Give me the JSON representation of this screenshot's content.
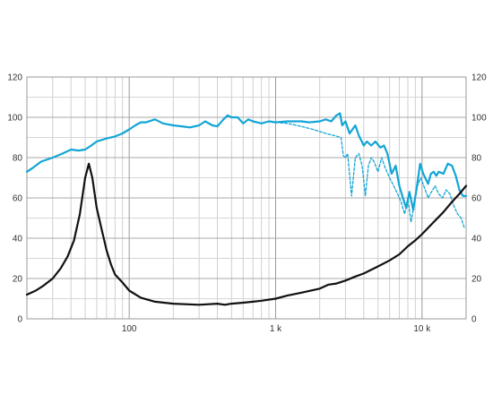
{
  "chart_data": {
    "type": "line",
    "xscale": "log",
    "xlim": [
      20,
      20000
    ],
    "ylim": [
      0,
      120
    ],
    "grid": true,
    "x_tick_labels": [
      {
        "x": 100,
        "label": "100"
      },
      {
        "x": 1000,
        "label": "1 k"
      },
      {
        "x": 10000,
        "label": "10 k"
      }
    ],
    "y_tick_labels": [
      "0",
      "20",
      "40",
      "60",
      "80",
      "100",
      "120"
    ],
    "y_tick_values": [
      0,
      20,
      40,
      60,
      80,
      100,
      120
    ],
    "series": [
      {
        "color": "#12a5d6",
        "style": "solid",
        "points": [
          [
            20,
            73
          ],
          [
            22,
            75
          ],
          [
            25,
            78
          ],
          [
            30,
            80
          ],
          [
            35,
            82
          ],
          [
            40,
            84
          ],
          [
            45,
            83.5
          ],
          [
            50,
            84
          ],
          [
            55,
            86
          ],
          [
            60,
            88
          ],
          [
            70,
            89.5
          ],
          [
            80,
            90.5
          ],
          [
            90,
            92
          ],
          [
            100,
            94
          ],
          [
            110,
            96
          ],
          [
            120,
            97.5
          ],
          [
            130,
            97.5
          ],
          [
            150,
            99
          ],
          [
            170,
            97
          ],
          [
            200,
            96
          ],
          [
            230,
            95.5
          ],
          [
            260,
            95
          ],
          [
            300,
            96
          ],
          [
            330,
            98
          ],
          [
            370,
            96
          ],
          [
            400,
            95.5
          ],
          [
            440,
            99
          ],
          [
            470,
            101
          ],
          [
            500,
            100
          ],
          [
            550,
            100
          ],
          [
            600,
            97
          ],
          [
            650,
            99
          ],
          [
            700,
            98
          ],
          [
            800,
            97
          ],
          [
            900,
            98
          ],
          [
            1000,
            97.5
          ],
          [
            1200,
            98
          ],
          [
            1500,
            98
          ],
          [
            1700,
            97.5
          ],
          [
            2000,
            98
          ],
          [
            2200,
            99
          ],
          [
            2400,
            98
          ],
          [
            2600,
            101
          ],
          [
            2750,
            102
          ],
          [
            2850,
            96
          ],
          [
            3000,
            98
          ],
          [
            3200,
            92
          ],
          [
            3500,
            96
          ],
          [
            3700,
            91
          ],
          [
            4000,
            86
          ],
          [
            4200,
            88
          ],
          [
            4500,
            86
          ],
          [
            4800,
            88
          ],
          [
            5200,
            85
          ],
          [
            5500,
            86
          ],
          [
            5800,
            82
          ],
          [
            6200,
            72
          ],
          [
            6600,
            76
          ],
          [
            7000,
            66
          ],
          [
            7400,
            60
          ],
          [
            7800,
            55
          ],
          [
            8200,
            63
          ],
          [
            8700,
            54
          ],
          [
            9200,
            65
          ],
          [
            9700,
            77
          ],
          [
            10200,
            72
          ],
          [
            11000,
            67
          ],
          [
            11500,
            72
          ],
          [
            12000,
            73
          ],
          [
            12500,
            71
          ],
          [
            13000,
            73
          ],
          [
            14000,
            72
          ],
          [
            15000,
            77
          ],
          [
            16000,
            76
          ],
          [
            17000,
            71
          ],
          [
            18000,
            64
          ],
          [
            19000,
            61
          ],
          [
            20000,
            61
          ]
        ]
      },
      {
        "color": "#12a5d6",
        "style": "dashed",
        "points": [
          [
            1000,
            97.5
          ],
          [
            1200,
            97
          ],
          [
            1400,
            96
          ],
          [
            1600,
            95
          ],
          [
            1800,
            94
          ],
          [
            2000,
            93
          ],
          [
            2200,
            92
          ],
          [
            2500,
            91
          ],
          [
            2800,
            90
          ],
          [
            2900,
            81
          ],
          [
            3000,
            80
          ],
          [
            3100,
            82
          ],
          [
            3300,
            61
          ],
          [
            3500,
            80
          ],
          [
            3700,
            82
          ],
          [
            3900,
            76
          ],
          [
            4100,
            61
          ],
          [
            4300,
            76
          ],
          [
            4500,
            80
          ],
          [
            4700,
            78
          ],
          [
            5000,
            73
          ],
          [
            5300,
            80
          ],
          [
            5600,
            75
          ],
          [
            6000,
            70
          ],
          [
            6400,
            66
          ],
          [
            6800,
            62
          ],
          [
            7200,
            58
          ],
          [
            7600,
            52
          ],
          [
            8000,
            60
          ],
          [
            8400,
            48
          ],
          [
            8800,
            56
          ],
          [
            9300,
            66
          ],
          [
            9800,
            70
          ],
          [
            10400,
            65
          ],
          [
            11000,
            60
          ],
          [
            11600,
            63
          ],
          [
            12300,
            66
          ],
          [
            13000,
            62
          ],
          [
            13800,
            60
          ],
          [
            14600,
            64
          ],
          [
            15500,
            62
          ],
          [
            16500,
            56
          ],
          [
            17500,
            52
          ],
          [
            18500,
            50
          ],
          [
            19500,
            45
          ]
        ]
      },
      {
        "color": "#111111",
        "style": "solid",
        "points": [
          [
            20,
            12
          ],
          [
            23,
            14
          ],
          [
            26,
            16.5
          ],
          [
            30,
            20
          ],
          [
            34,
            25
          ],
          [
            38,
            31
          ],
          [
            42,
            39
          ],
          [
            46,
            52
          ],
          [
            50,
            70
          ],
          [
            53,
            77
          ],
          [
            56,
            70
          ],
          [
            60,
            55
          ],
          [
            65,
            44
          ],
          [
            70,
            34
          ],
          [
            75,
            27
          ],
          [
            80,
            22
          ],
          [
            90,
            18
          ],
          [
            100,
            14
          ],
          [
            120,
            10.5
          ],
          [
            150,
            8.5
          ],
          [
            200,
            7.5
          ],
          [
            300,
            7
          ],
          [
            400,
            7.5
          ],
          [
            450,
            7
          ],
          [
            500,
            7.5
          ],
          [
            600,
            8
          ],
          [
            700,
            8.5
          ],
          [
            800,
            9
          ],
          [
            1000,
            10
          ],
          [
            1200,
            11.5
          ],
          [
            1500,
            13
          ],
          [
            2000,
            15
          ],
          [
            2300,
            17
          ],
          [
            2600,
            17.5
          ],
          [
            3000,
            19
          ],
          [
            3500,
            21
          ],
          [
            4000,
            22.5
          ],
          [
            5000,
            26
          ],
          [
            6000,
            29
          ],
          [
            7000,
            32
          ],
          [
            8000,
            36
          ],
          [
            9000,
            39
          ],
          [
            10000,
            42
          ],
          [
            12000,
            48
          ],
          [
            14000,
            53
          ],
          [
            16000,
            58
          ],
          [
            18000,
            62
          ],
          [
            20000,
            66
          ]
        ]
      }
    ]
  }
}
